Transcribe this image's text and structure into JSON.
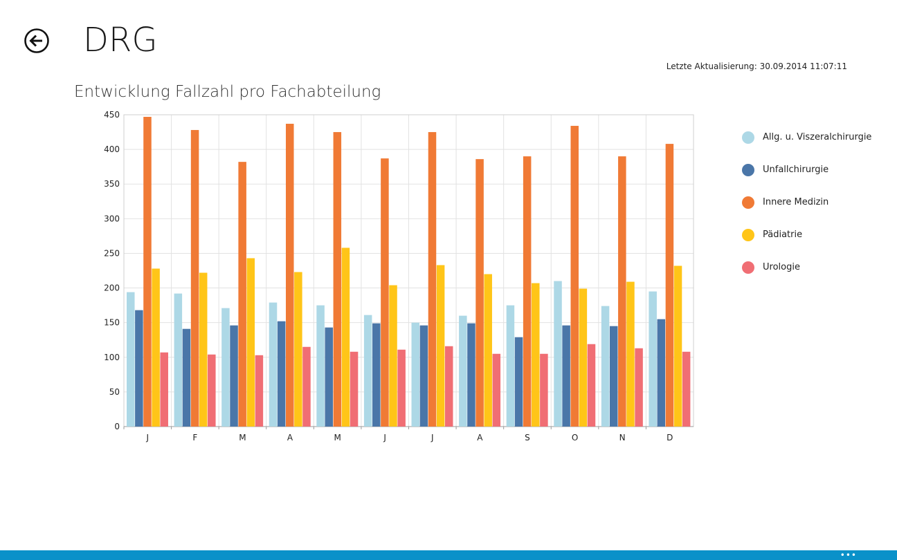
{
  "header": {
    "title": "DRG",
    "last_update": "Letzte Aktualisierung: 30.09.2014 11:07:11"
  },
  "icons": {
    "back": "back-arrow-icon",
    "more": "more-ellipsis-icon"
  },
  "app_bar": {
    "more_label": "•••"
  },
  "chart_data": {
    "type": "bar",
    "title": "Entwicklung Fallzahl pro Fachabteilung",
    "xlabel": "",
    "ylabel": "",
    "ylim": [
      0,
      450
    ],
    "yticks": [
      0,
      50,
      100,
      150,
      200,
      250,
      300,
      350,
      400,
      450
    ],
    "categories": [
      "J",
      "F",
      "M",
      "A",
      "M",
      "J",
      "J",
      "A",
      "S",
      "O",
      "N",
      "D"
    ],
    "grid": true,
    "legend_position": "right",
    "series": [
      {
        "name": "Allg. u. Viszeralchirurgie",
        "color": "#add8e6",
        "values": [
          194,
          192,
          171,
          179,
          175,
          161,
          150,
          160,
          175,
          210,
          174,
          195
        ]
      },
      {
        "name": "Unfallchirurgie",
        "color": "#4a76a8",
        "values": [
          168,
          141,
          146,
          152,
          143,
          149,
          146,
          149,
          129,
          146,
          145,
          155
        ]
      },
      {
        "name": "Innere Medizin",
        "color": "#f07a35",
        "values": [
          447,
          428,
          382,
          437,
          425,
          387,
          425,
          386,
          390,
          434,
          390,
          408
        ]
      },
      {
        "name": "Pädiatrie",
        "color": "#ffc518",
        "values": [
          228,
          222,
          243,
          223,
          258,
          204,
          233,
          220,
          207,
          199,
          209,
          232
        ]
      },
      {
        "name": "Urologie",
        "color": "#f06e74",
        "values": [
          107,
          104,
          103,
          115,
          108,
          111,
          116,
          105,
          105,
          119,
          113,
          108
        ]
      }
    ]
  }
}
